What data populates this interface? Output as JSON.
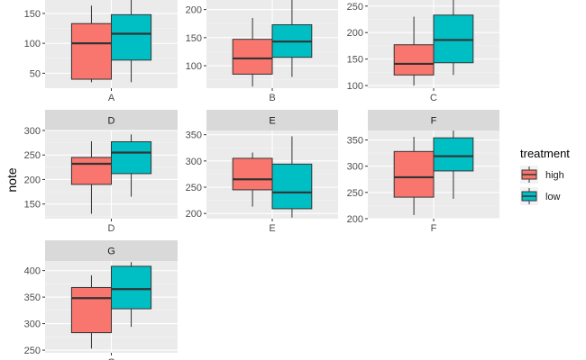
{
  "chart_data": {
    "type": "boxplot",
    "ylabel": "note",
    "xlabel": "",
    "legend": {
      "title": "treatment",
      "placement": "right",
      "entries": [
        {
          "name": "high",
          "color": "#F8766D"
        },
        {
          "name": "low",
          "color": "#00BFC4"
        }
      ]
    },
    "grid": true,
    "panels": [
      {
        "name": "A",
        "ylim": [
          25,
          180
        ],
        "yticks": [
          50,
          100,
          150
        ],
        "groups": [
          {
            "treatment": "high",
            "whisker_low": 35,
            "q1": 40,
            "median": 100,
            "q3": 133,
            "whisker_high": 163
          },
          {
            "treatment": "low",
            "whisker_low": 35,
            "q1": 72,
            "median": 116,
            "q3": 148,
            "whisker_high": 180
          }
        ]
      },
      {
        "name": "B",
        "ylim": [
          60,
          225
        ],
        "yticks": [
          100,
          150,
          200
        ],
        "groups": [
          {
            "treatment": "high",
            "whisker_low": 63,
            "q1": 85,
            "median": 113,
            "q3": 147,
            "whisker_high": 185
          },
          {
            "treatment": "low",
            "whisker_low": 80,
            "q1": 115,
            "median": 143,
            "q3": 173,
            "whisker_high": 220
          }
        ]
      },
      {
        "name": "C",
        "ylim": [
          95,
          270
        ],
        "yticks": [
          100,
          150,
          200,
          250
        ],
        "groups": [
          {
            "treatment": "high",
            "whisker_low": 100,
            "q1": 120,
            "median": 141,
            "q3": 177,
            "whisker_high": 230
          },
          {
            "treatment": "low",
            "whisker_low": 120,
            "q1": 143,
            "median": 186,
            "q3": 233,
            "whisker_high": 266
          }
        ]
      },
      {
        "name": "D",
        "ylim": [
          120,
          300
        ],
        "yticks": [
          150,
          200,
          250,
          300
        ],
        "groups": [
          {
            "treatment": "high",
            "whisker_low": 130,
            "q1": 190,
            "median": 232,
            "q3": 245,
            "whisker_high": 278
          },
          {
            "treatment": "low",
            "whisker_low": 165,
            "q1": 212,
            "median": 255,
            "q3": 277,
            "whisker_high": 292
          }
        ]
      },
      {
        "name": "E",
        "ylim": [
          190,
          358
        ],
        "yticks": [
          200,
          250,
          300,
          350
        ],
        "groups": [
          {
            "treatment": "high",
            "whisker_low": 213,
            "q1": 245,
            "median": 265,
            "q3": 305,
            "whisker_high": 316
          },
          {
            "treatment": "low",
            "whisker_low": 192,
            "q1": 209,
            "median": 240,
            "q3": 294,
            "whisker_high": 347
          }
        ]
      },
      {
        "name": "F",
        "ylim": [
          200,
          368
        ],
        "yticks": [
          200,
          250,
          300,
          350
        ],
        "groups": [
          {
            "treatment": "high",
            "whisker_low": 207,
            "q1": 241,
            "median": 279,
            "q3": 328,
            "whisker_high": 356
          },
          {
            "treatment": "low",
            "whisker_low": 238,
            "q1": 291,
            "median": 319,
            "q3": 354,
            "whisker_high": 368
          }
        ]
      },
      {
        "name": "G",
        "ylim": [
          245,
          418
        ],
        "yticks": [
          250,
          300,
          350,
          400
        ],
        "groups": [
          {
            "treatment": "high",
            "whisker_low": 253,
            "q1": 283,
            "median": 348,
            "q3": 368,
            "whisker_high": 391
          },
          {
            "treatment": "low",
            "whisker_low": 294,
            "q1": 328,
            "median": 365,
            "q3": 408,
            "whisker_high": 416
          }
        ]
      }
    ]
  }
}
